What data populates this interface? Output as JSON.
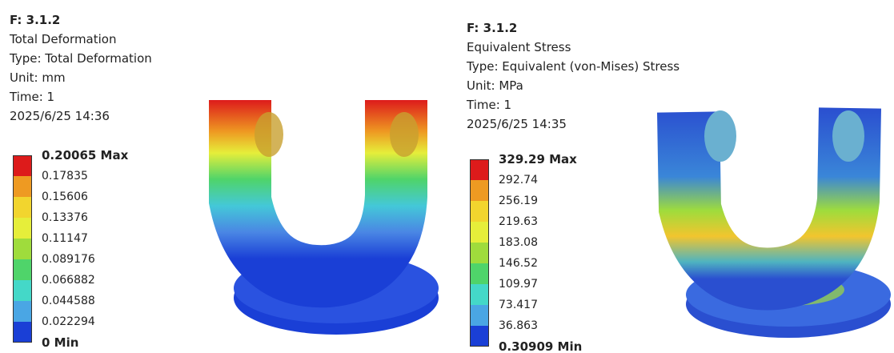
{
  "panels": [
    {
      "id": "F: 3.1.2",
      "title": "Total Deformation",
      "type": "Type: Total Deformation",
      "unit": "Unit: mm",
      "time": "Time: 1",
      "date": "2025/6/25 14:36",
      "legend": [
        "0.20065 Max",
        "0.17835",
        "0.15606",
        "0.13376",
        "0.11147",
        "0.089176",
        "0.066882",
        "0.044588",
        "0.022294",
        "0 Min"
      ]
    },
    {
      "id": "F: 3.1.2",
      "title": "Equivalent Stress",
      "type": "Type: Equivalent (von-Mises) Stress",
      "unit": "Unit: MPa",
      "time": "Time: 1",
      "date": "2025/6/25 14:35",
      "legend": [
        "329.29 Max",
        "292.74",
        "256.19",
        "219.63",
        "183.08",
        "146.52",
        "109.97",
        "73.417",
        "36.863",
        "0.30909 Min"
      ]
    }
  ]
}
